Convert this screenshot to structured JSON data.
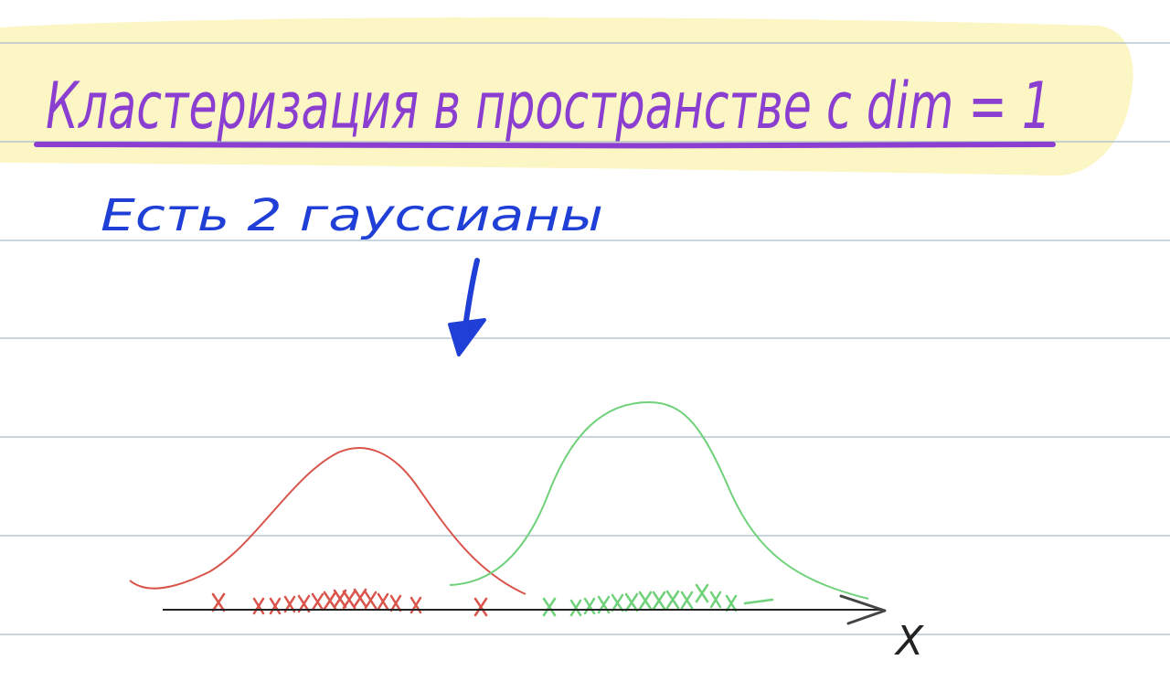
{
  "title": "Кластеризация в пространстве с dim = 1",
  "subtitle": "Есть 2 гауссианы",
  "axis_label": "X",
  "colors": {
    "title_ink": "#8a3fd1",
    "subtitle_ink": "#1f3fd6",
    "highlight": "#fbf6c4",
    "rule_line": "#a9bcc9",
    "cluster_1": "#d9544b",
    "cluster_2": "#6fd17a",
    "axis": "#222222"
  }
}
